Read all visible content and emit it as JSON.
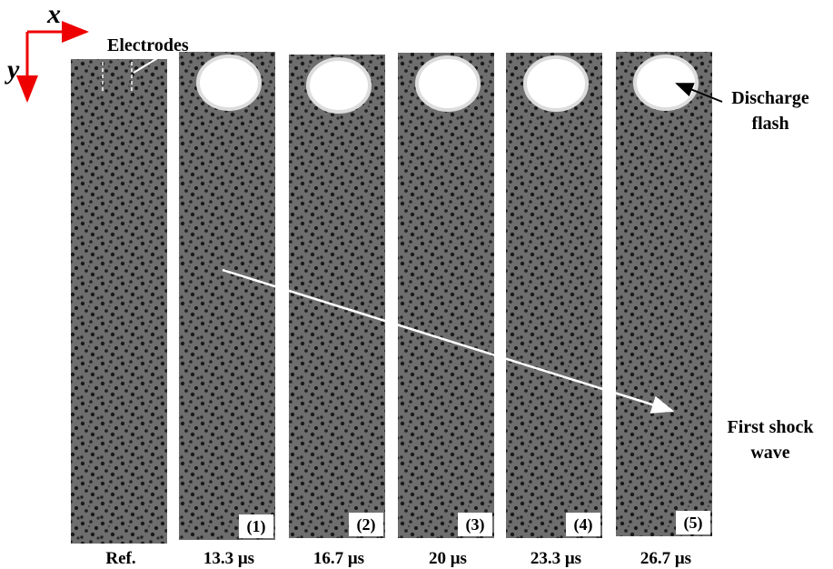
{
  "axes": {
    "x": "x",
    "y": "y"
  },
  "annotations": {
    "electrodes": "Electrodes",
    "discharge_flash": [
      "Discharge",
      "flash"
    ],
    "first_shock_wave": [
      "First shock",
      "wave"
    ]
  },
  "panels": [
    {
      "caption": "Ref."
    },
    {
      "caption": "13.3 μs",
      "label": "(1)"
    },
    {
      "caption": "16.7 μs",
      "label": "(2)"
    },
    {
      "caption": "20 μs",
      "label": "(3)"
    },
    {
      "caption": "23.3 μs",
      "label": "(4)"
    },
    {
      "caption": "26.7 μs",
      "label": "(5)"
    }
  ]
}
